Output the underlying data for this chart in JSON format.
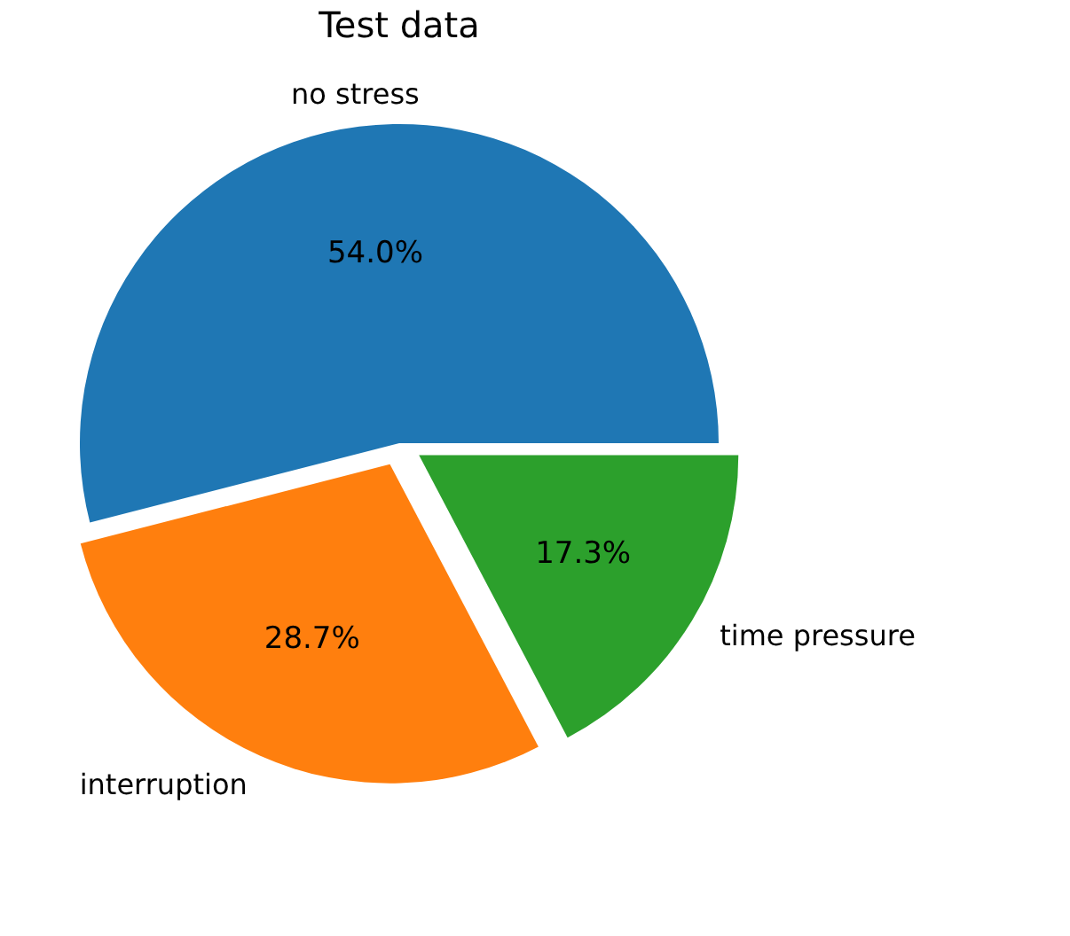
{
  "chart_data": {
    "type": "pie",
    "title": "Test data",
    "categories": [
      "no stress",
      "interruption",
      "time pressure"
    ],
    "values": [
      54.0,
      28.7,
      17.3
    ],
    "colors": [
      "#1f77b4",
      "#ff7f0e",
      "#2ca02c"
    ],
    "value_labels": [
      "54.0%",
      "28.7%",
      "17.3%"
    ]
  }
}
